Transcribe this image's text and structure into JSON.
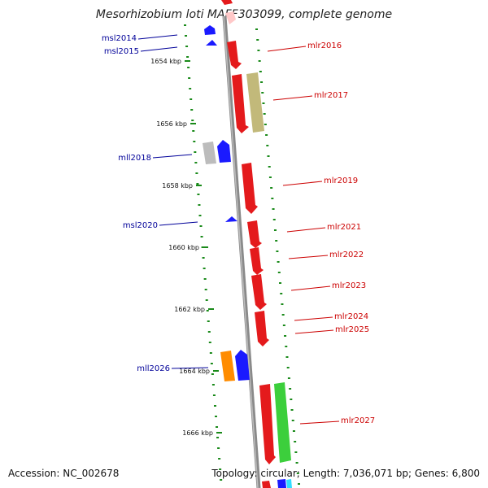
{
  "title": "Mesorhizobium loti MAFF303099, complete genome",
  "accession": "Accession: NC_002678",
  "topology": "Topology: circular; Length: 7,036,071 bp; Genes: 6,800",
  "ticks": [
    "1654 kbp",
    "1656 kbp",
    "1658 kbp",
    "1660 kbp",
    "1662 kbp",
    "1664 kbp",
    "1666 kbp"
  ],
  "genes": [
    {
      "name": "msl2014",
      "strand": "-"
    },
    {
      "name": "msl2015",
      "strand": "-"
    },
    {
      "name": "mlr2016",
      "strand": "+"
    },
    {
      "name": "mlr2017",
      "strand": "+"
    },
    {
      "name": "mll2018",
      "strand": "-"
    },
    {
      "name": "mlr2019",
      "strand": "+"
    },
    {
      "name": "msl2020",
      "strand": "-"
    },
    {
      "name": "mlr2021",
      "strand": "+"
    },
    {
      "name": "mlr2022",
      "strand": "+"
    },
    {
      "name": "mlr2023",
      "strand": "+"
    },
    {
      "name": "mlr2024",
      "strand": "+"
    },
    {
      "name": "mlr2025",
      "strand": "+"
    },
    {
      "name": "mll2026",
      "strand": "-"
    },
    {
      "name": "mlr2027",
      "strand": "+"
    }
  ],
  "colors": {
    "forward": "#e41a1c",
    "reverse": "#1a1aff",
    "backbone": "#888888",
    "gc_dots": "#1a8a1a",
    "forward_label": "#cc0000",
    "reverse_label": "#000099",
    "khaki": "#bdb76b",
    "green": "#33cc33",
    "orange": "#ff8c00",
    "grey": "#bbbbbb"
  }
}
